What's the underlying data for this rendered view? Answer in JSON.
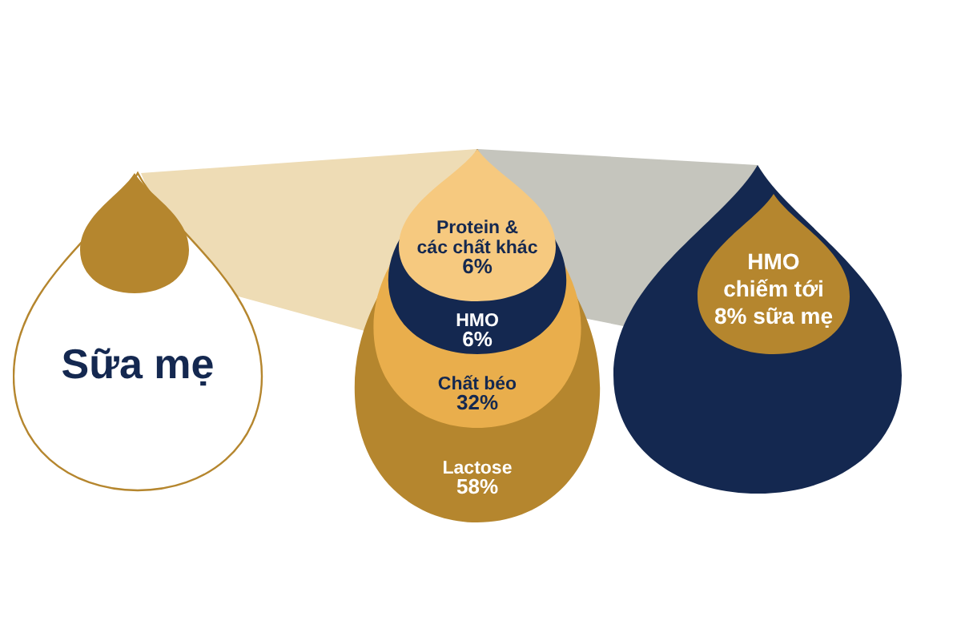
{
  "chart_data": {
    "type": "other",
    "categories": [
      "Protein & các chất khác",
      "HMO",
      "Chất béo",
      "Lactose"
    ],
    "values": [
      6,
      6,
      32,
      58
    ],
    "value_labels": [
      "6%",
      "6%",
      "32%",
      "58%"
    ],
    "colors": [
      "#f6c97f",
      "#142850",
      "#e9ae4c",
      "#b5862e"
    ],
    "annotations": [
      "Sữa mẹ",
      "HMO chiếm tới 8% sữa mẹ"
    ]
  }
}
